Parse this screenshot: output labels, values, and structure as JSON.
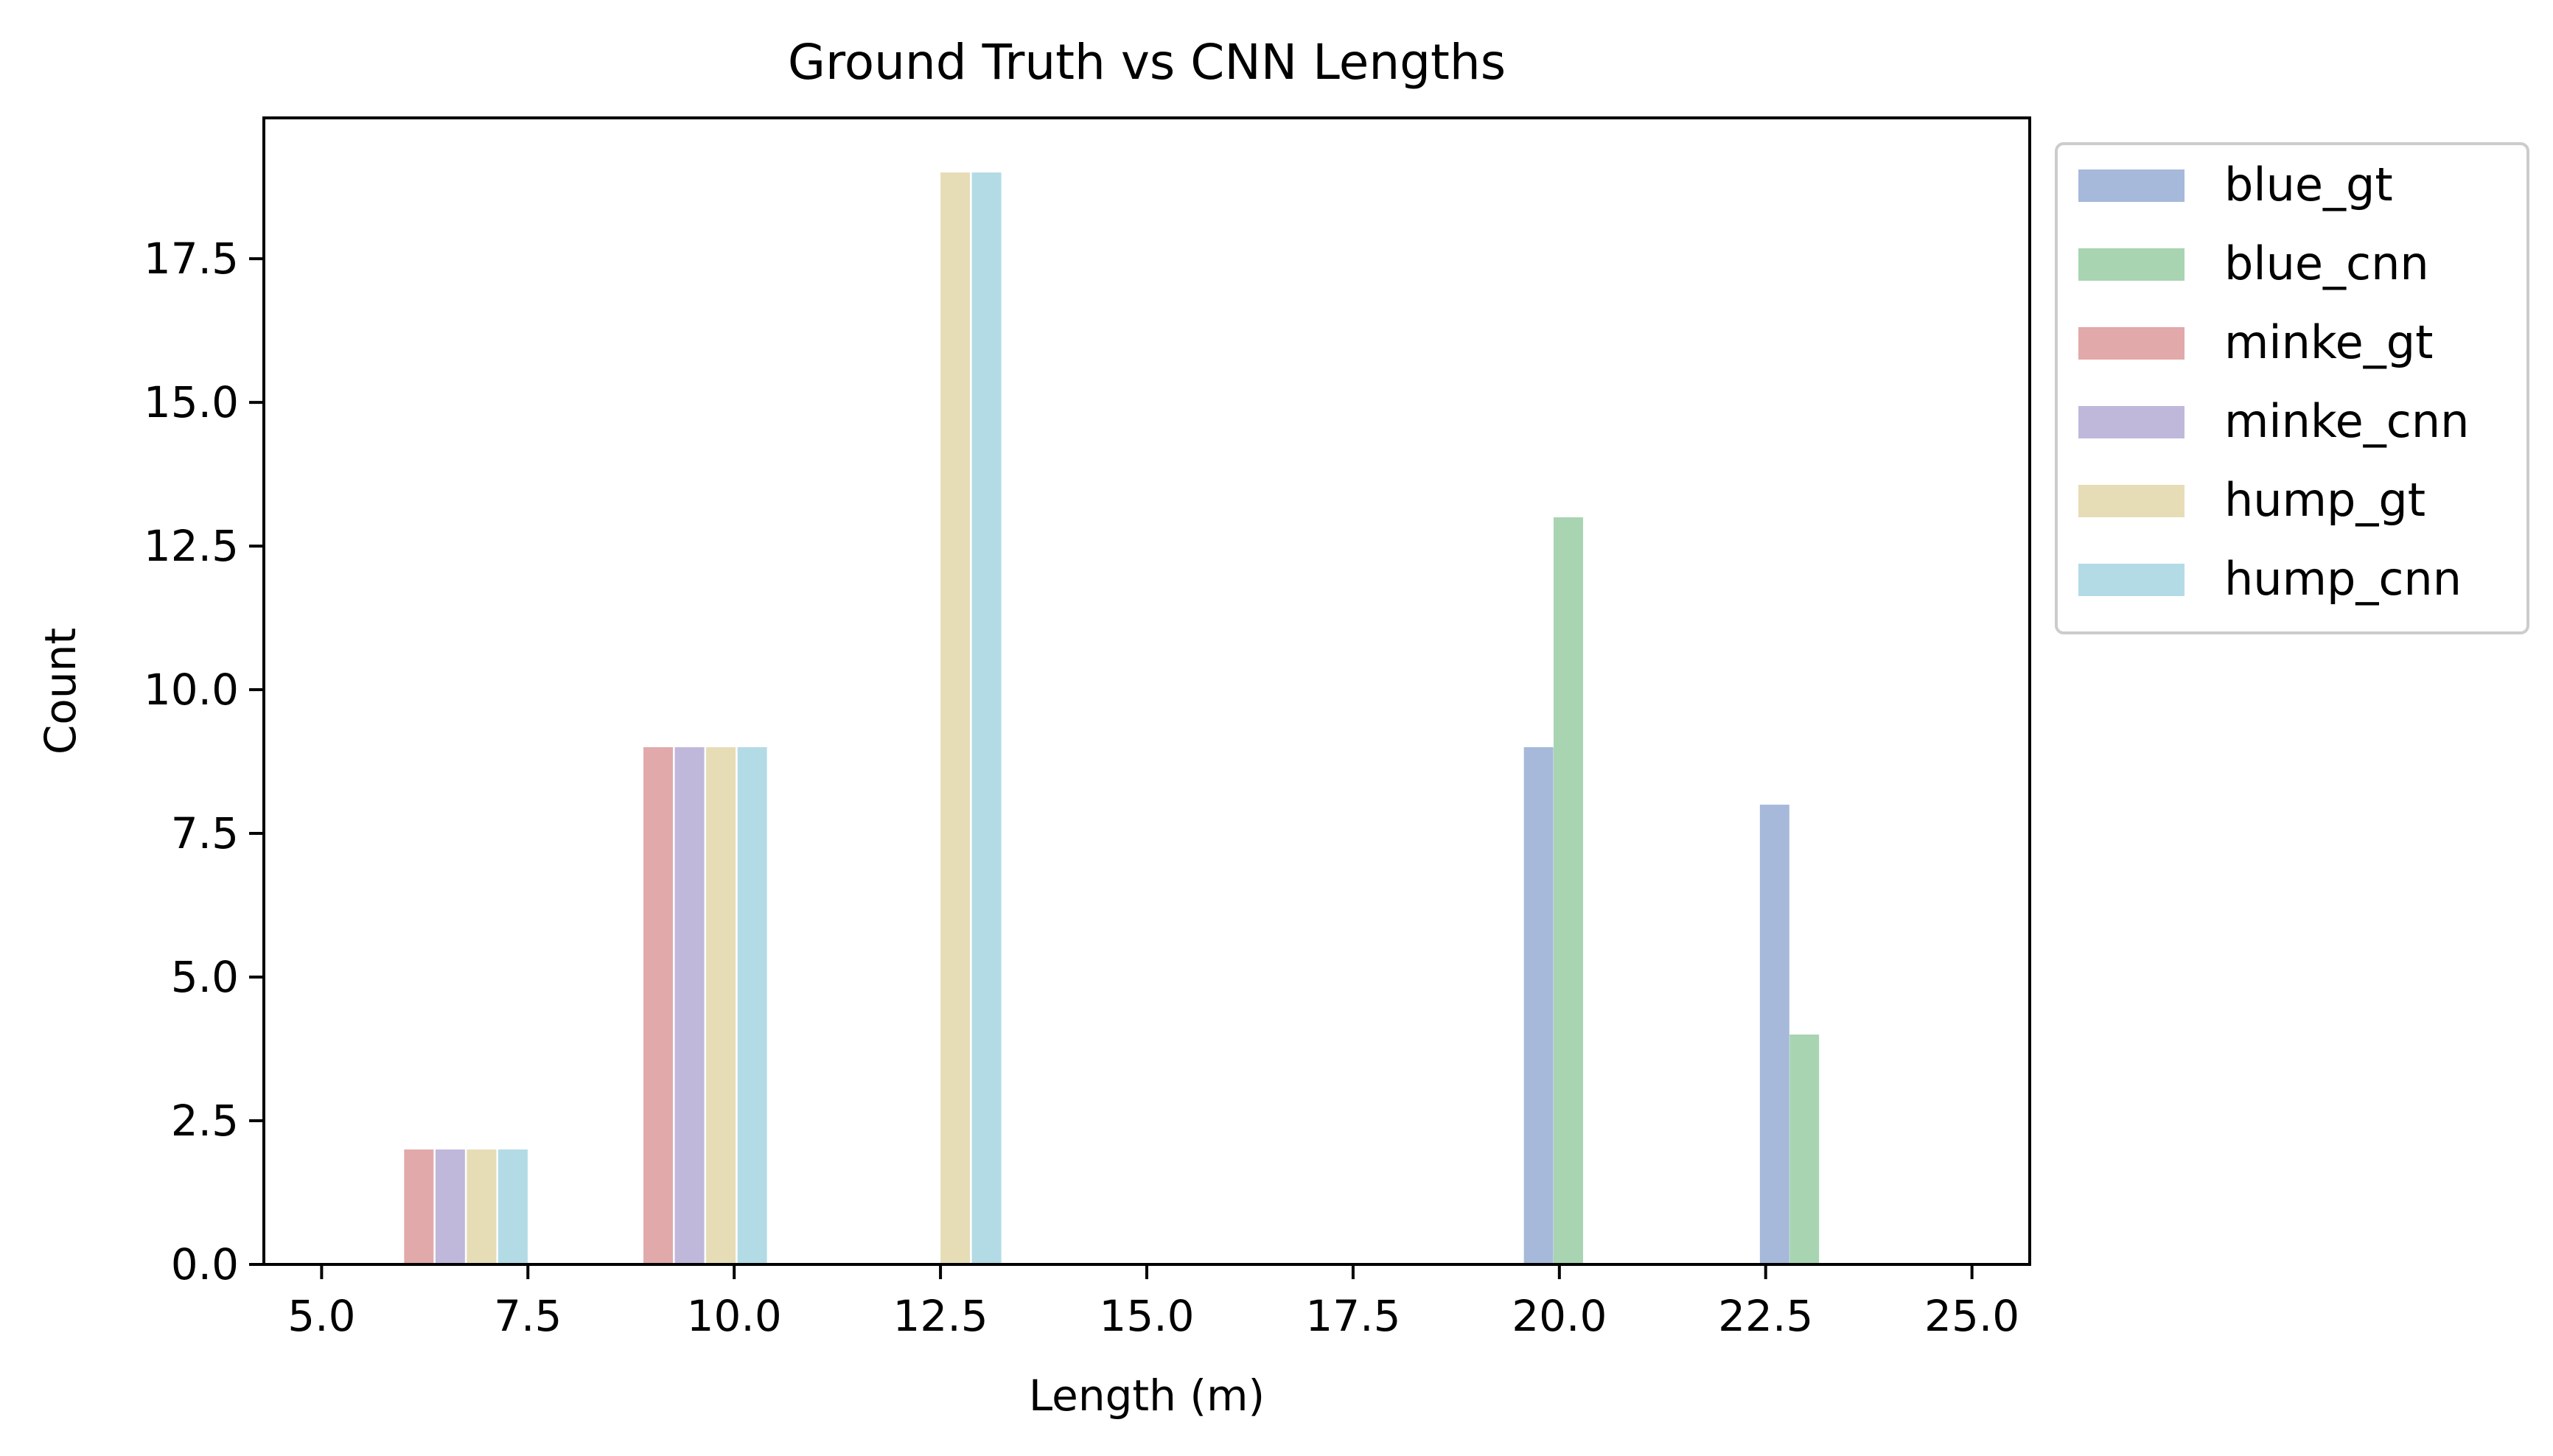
{
  "chart_data": {
    "type": "bar",
    "title": "Ground Truth vs CNN Lengths",
    "xlabel": "Length (m)",
    "ylabel": "Count",
    "xlim": [
      4.3,
      25.7
    ],
    "ylim": [
      0,
      19.95
    ],
    "xticks": [
      5.0,
      7.5,
      10.0,
      12.5,
      15.0,
      17.5,
      20.0,
      22.5,
      25.0
    ],
    "xtick_labels": [
      "5.0",
      "7.5",
      "10.0",
      "12.5",
      "15.0",
      "17.5",
      "20.0",
      "22.5",
      "25.0"
    ],
    "yticks": [
      0.0,
      2.5,
      5.0,
      7.5,
      10.0,
      12.5,
      15.0,
      17.5
    ],
    "ytick_labels": [
      "0.0",
      "2.5",
      "5.0",
      "7.5",
      "10.0",
      "12.5",
      "15.0",
      "17.5"
    ],
    "grid": false,
    "legend_position": "outside-upper-right",
    "bin_edges": [
      6.0,
      8.857,
      11.714,
      14.571,
      17.429,
      20.286,
      23.143,
      26.0
    ],
    "bar_width": 0.357,
    "series": [
      {
        "name": "blue_gt",
        "color": "#a6b9da",
        "bars": [
          {
            "x": 19.57,
            "value": 9
          },
          {
            "x": 22.43,
            "value": 8
          }
        ]
      },
      {
        "name": "blue_cnn",
        "color": "#a8d4b2",
        "bars": [
          {
            "x": 19.93,
            "value": 13
          },
          {
            "x": 22.79,
            "value": 4
          }
        ]
      },
      {
        "name": "minke_gt",
        "color": "#e2a9aa",
        "bars": [
          {
            "x": 6.0,
            "value": 2
          },
          {
            "x": 8.9,
            "value": 9
          }
        ]
      },
      {
        "name": "minke_cnn",
        "color": "#c0b8db",
        "bars": [
          {
            "x": 6.38,
            "value": 2
          },
          {
            "x": 9.28,
            "value": 9
          }
        ]
      },
      {
        "name": "hump_gt",
        "color": "#e6dcb6",
        "bars": [
          {
            "x": 6.76,
            "value": 2
          },
          {
            "x": 9.66,
            "value": 9
          },
          {
            "x": 12.5,
            "value": 19
          }
        ]
      },
      {
        "name": "hump_cnn",
        "color": "#b3dbe6",
        "bars": [
          {
            "x": 7.14,
            "value": 2
          },
          {
            "x": 10.04,
            "value": 9
          },
          {
            "x": 12.88,
            "value": 19
          }
        ]
      }
    ]
  }
}
